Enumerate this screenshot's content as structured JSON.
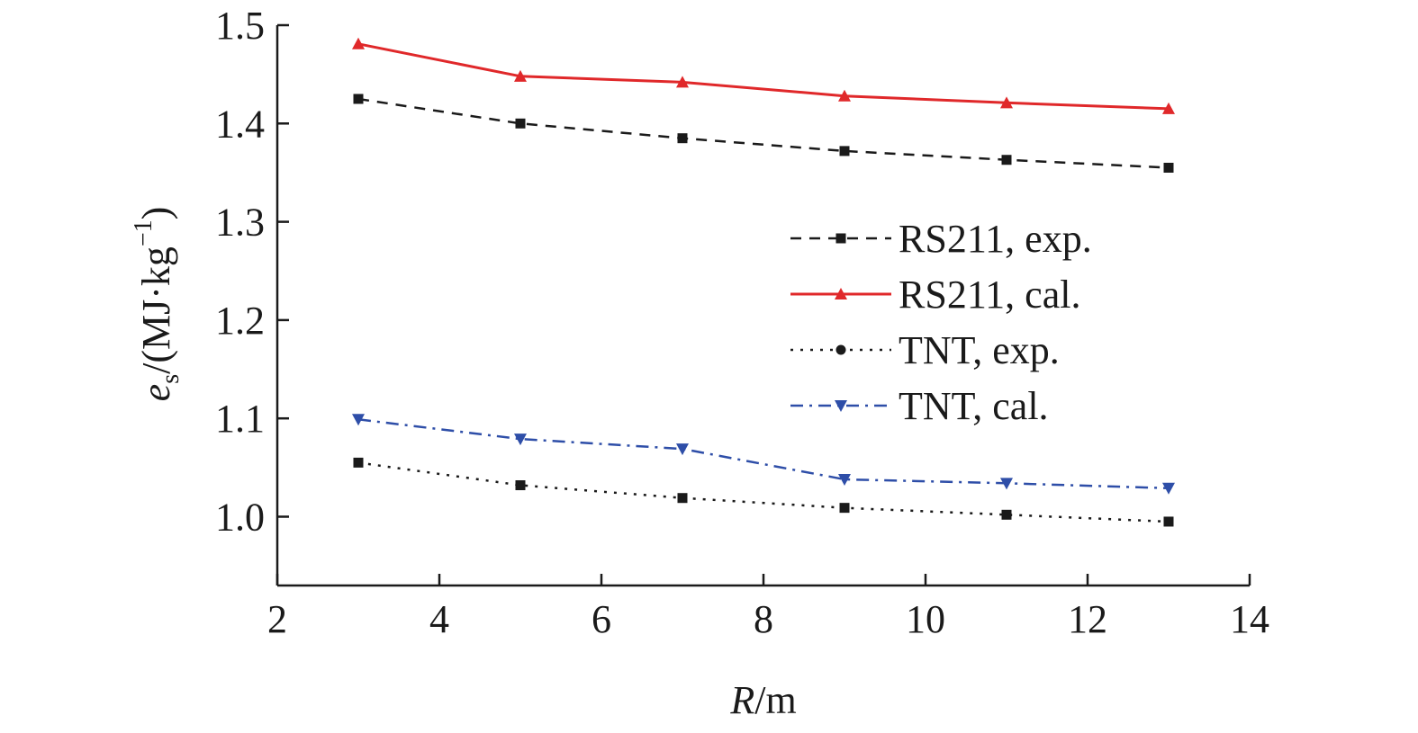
{
  "chart_data": {
    "type": "line",
    "x": [
      3,
      5,
      7,
      9,
      11,
      13
    ],
    "xlim": [
      2,
      14
    ],
    "ylim": [
      0.93,
      1.5
    ],
    "xticks": [
      2,
      4,
      6,
      8,
      10,
      12,
      14
    ],
    "yticks": [
      1.0,
      1.1,
      1.2,
      1.3,
      1.4,
      1.5
    ],
    "xtick_labels": [
      "2",
      "4",
      "6",
      "8",
      "10",
      "12",
      "14"
    ],
    "ytick_labels": [
      "1.0",
      "1.1",
      "1.2",
      "1.3",
      "1.4",
      "1.5"
    ],
    "xlabel": {
      "italic": "R",
      "rest": "/m"
    },
    "ylabel": {
      "italic": "e",
      "sub": "s",
      "rest": "/(MJ·kg",
      "sup": "−1",
      "close": ")"
    },
    "grid": false,
    "legend_position": "right",
    "series": [
      {
        "name": "RS211, exp.",
        "values": [
          1.425,
          1.4,
          1.385,
          1.372,
          1.363,
          1.355
        ],
        "color": "#1a1a1a",
        "line": "dashed",
        "marker": "square"
      },
      {
        "name": "RS211, cal.",
        "values": [
          1.481,
          1.448,
          1.442,
          1.428,
          1.421,
          1.415
        ],
        "color": "#e0282a",
        "line": "solid",
        "marker": "triangle-up"
      },
      {
        "name": "TNT, exp.",
        "values": [
          1.055,
          1.032,
          1.019,
          1.009,
          1.002,
          0.995
        ],
        "color": "#1a1a1a",
        "line": "dotted",
        "marker": "square",
        "legend_marker": "circle"
      },
      {
        "name": "TNT, cal.",
        "values": [
          1.099,
          1.079,
          1.069,
          1.038,
          1.034,
          1.029
        ],
        "color": "#2e4ea8",
        "line": "dashdot",
        "marker": "triangle-down"
      }
    ]
  }
}
